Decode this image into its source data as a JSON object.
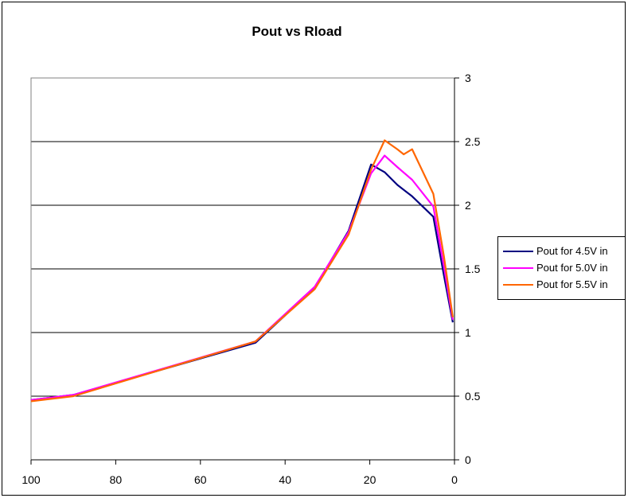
{
  "chart_data": {
    "type": "line",
    "title": "Pout vs Rload",
    "xlabel": "",
    "ylabel": "",
    "xlim": [
      100,
      0
    ],
    "ylim": [
      0,
      3
    ],
    "x_reversed": true,
    "y_axis_position": "right",
    "grid": "horizontal",
    "legend_position": "right",
    "xticks": [
      "100",
      "80",
      "60",
      "40",
      "20",
      "0"
    ],
    "yticks": [
      "0",
      "0.5",
      "1",
      "1.5",
      "2",
      "2.5",
      "3"
    ],
    "series": [
      {
        "name": "Pout for 4.5V in",
        "color": "#000080",
        "x": [
          100,
          90,
          47,
          33,
          25,
          19.7,
          16.5,
          13.5,
          10,
          5,
          2.5,
          0.4
        ],
        "y": [
          0.47,
          0.51,
          0.92,
          1.35,
          1.8,
          2.32,
          2.26,
          2.16,
          2.07,
          1.91,
          1.45,
          1.08
        ]
      },
      {
        "name": "Pout for 5.0V in",
        "color": "#ff00ff",
        "x": [
          100,
          90,
          47,
          33,
          25,
          19.7,
          16.5,
          13.5,
          10,
          5,
          2.5,
          0.4
        ],
        "y": [
          0.47,
          0.51,
          0.93,
          1.36,
          1.79,
          2.25,
          2.39,
          2.3,
          2.2,
          1.99,
          1.52,
          1.1
        ]
      },
      {
        "name": "Pout for 5.5V in",
        "color": "#ff6600",
        "x": [
          100,
          90,
          47,
          33,
          25,
          19.7,
          16.5,
          13.5,
          12,
          10,
          5,
          2.5,
          0.4
        ],
        "y": [
          0.46,
          0.5,
          0.93,
          1.34,
          1.77,
          2.28,
          2.51,
          2.44,
          2.4,
          2.44,
          2.09,
          1.6,
          1.12
        ]
      }
    ]
  }
}
